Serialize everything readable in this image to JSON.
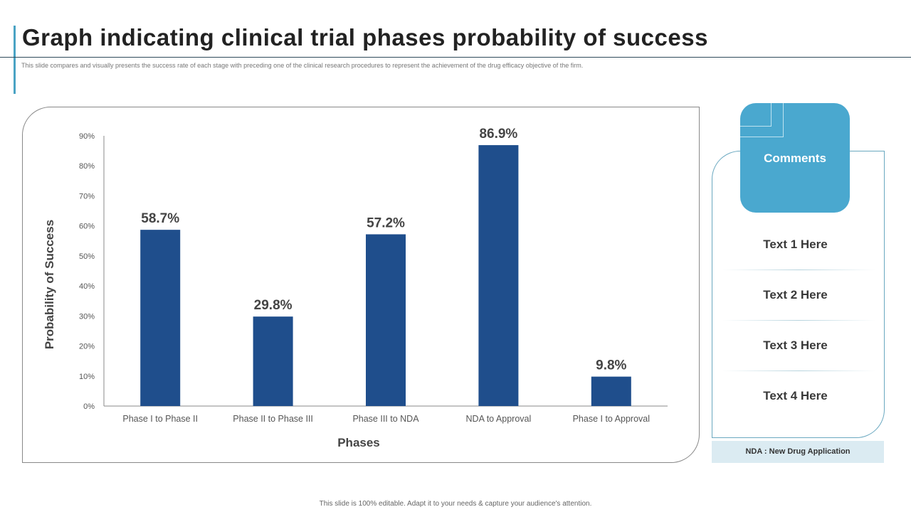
{
  "header": {
    "title": "Graph indicating clinical trial phases probability of success",
    "subtitle": "This slide compares and visually presents the success rate of each stage with preceding one of the clinical research procedures to represent the achievement of the drug efficacy objective of the firm."
  },
  "chart_data": {
    "type": "bar",
    "categories": [
      "Phase I to Phase II",
      "Phase II to Phase III",
      "Phase III to NDA",
      "NDA to Approval",
      "Phase I to Approval"
    ],
    "values": [
      58.7,
      29.8,
      57.2,
      86.9,
      9.8
    ],
    "data_labels": [
      "58.7%",
      "29.8%",
      "57.2%",
      "86.9%",
      "9.8%"
    ],
    "xlabel": "Phases",
    "ylabel": "Probability of Success",
    "ylim": [
      0,
      90
    ],
    "yticks": [
      "0%",
      "10%",
      "20%",
      "30%",
      "40%",
      "50%",
      "60%",
      "70%",
      "80%",
      "90%"
    ],
    "bar_color": "#1f4e8c",
    "grid": false
  },
  "comments": {
    "title": "Comments",
    "items": [
      "Text 1 Here",
      "Text 2 Here",
      "Text 3 Here",
      "Text 4 Here"
    ],
    "note": "NDA : New Drug Application"
  },
  "footer": "This slide is 100% editable. Adapt it to your needs & capture your audience's attention."
}
